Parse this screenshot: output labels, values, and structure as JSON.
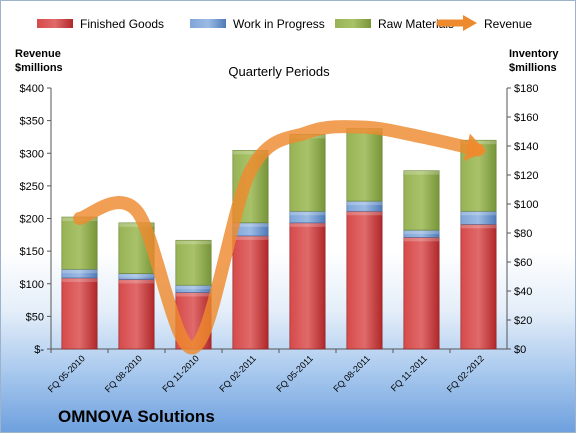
{
  "company_name": "OMNOVA Solutions",
  "colors": {
    "finished_goods": "#c0282a",
    "work_in_progress": "#5b86c4",
    "raw_materials": "#7f9b3a",
    "revenue": "#ee8a2e"
  },
  "chart_data": {
    "type": "bar",
    "subtype": "stacked bar with line overlay (secondary axis)",
    "title": "Quarterly Periods",
    "left_axis_title": "Revenue\n$millions",
    "right_axis_title": "Inventory\n$millions",
    "categories": [
      "FQ 05-2010",
      "FQ 08-2010",
      "FQ 11-2010",
      "FQ 02-2011",
      "FQ 05-2011",
      "FQ 08-2011",
      "FQ 11-2011",
      "FQ 02-2012"
    ],
    "series": [
      {
        "name": "Finished Goods",
        "type": "bar",
        "axis": "right",
        "values": [
          49,
          48,
          39,
          78,
          87,
          95,
          77,
          86
        ]
      },
      {
        "name": "Work in Progress",
        "type": "bar",
        "axis": "right",
        "values": [
          6,
          4,
          5,
          9,
          8,
          7,
          5,
          9
        ]
      },
      {
        "name": "Raw Materials",
        "type": "bar",
        "axis": "right",
        "values": [
          36,
          35,
          31,
          50,
          53,
          50,
          41,
          49
        ]
      },
      {
        "name": "Revenue",
        "type": "line",
        "axis": "left",
        "values": [
          200,
          212,
          2,
          273,
          332,
          340,
          325,
          305
        ]
      }
    ],
    "left_ylim": [
      0,
      400
    ],
    "left_ticks": [
      "$-",
      "$50",
      "$100",
      "$150",
      "$200",
      "$250",
      "$300",
      "$350",
      "$400"
    ],
    "right_ylim": [
      0,
      180
    ],
    "right_ticks": [
      "$0",
      "$20",
      "$40",
      "$60",
      "$80",
      "$100",
      "$120",
      "$140",
      "$160",
      "$180"
    ],
    "legend_position": "top",
    "grid": false
  }
}
